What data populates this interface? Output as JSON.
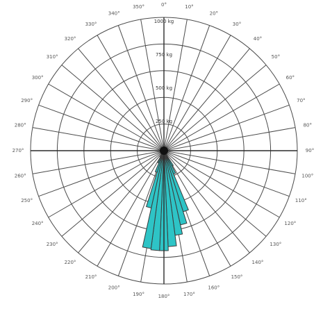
{
  "chart_data": {
    "type": "polar-bar",
    "angular_unit": "degrees",
    "angular_zero": "top",
    "angular_direction": "clockwise",
    "angular_tick_step": 10,
    "radial_max": 1000,
    "radial_rings": [
      200,
      400,
      600,
      800,
      1000
    ],
    "radial_tick_labels": [
      {
        "value": 250,
        "label": "250 kg"
      },
      {
        "value": 500,
        "label": "500 kg"
      },
      {
        "value": 750,
        "label": "750 kg"
      },
      {
        "value": 1000,
        "label": "1000 kg"
      }
    ],
    "angular_tick_labels": [
      "0°",
      "10°",
      "20°",
      "30°",
      "40°",
      "50°",
      "60°",
      "70°",
      "80°",
      "90°",
      "100°",
      "110°",
      "120°",
      "130°",
      "140°",
      "150°",
      "160°",
      "170°",
      "180°",
      "190°",
      "200°",
      "210°",
      "220°",
      "230°",
      "240°",
      "250°",
      "260°",
      "270°",
      "280°",
      "290°",
      "300°",
      "310°",
      "320°",
      "330°",
      "340°",
      "350°"
    ],
    "bar_width_deg": 5,
    "bars": [
      {
        "angle": 150,
        "value": 130
      },
      {
        "angle": 155,
        "value": 190
      },
      {
        "angle": 160,
        "value": 480
      },
      {
        "angle": 165,
        "value": 570
      },
      {
        "angle": 170,
        "value": 640
      },
      {
        "angle": 175,
        "value": 720
      },
      {
        "angle": 180,
        "value": 750
      },
      {
        "angle": 185,
        "value": 750
      },
      {
        "angle": 190,
        "value": 740
      },
      {
        "angle": 195,
        "value": 440
      },
      {
        "angle": 200,
        "value": 170
      },
      {
        "angle": 205,
        "value": 100
      },
      {
        "angle": 210,
        "value": 55
      }
    ],
    "grid": true,
    "legend": "none",
    "colors": {
      "bar": "#2ec4c6",
      "grid": "#4a4a4a",
      "center": "#111111"
    }
  }
}
